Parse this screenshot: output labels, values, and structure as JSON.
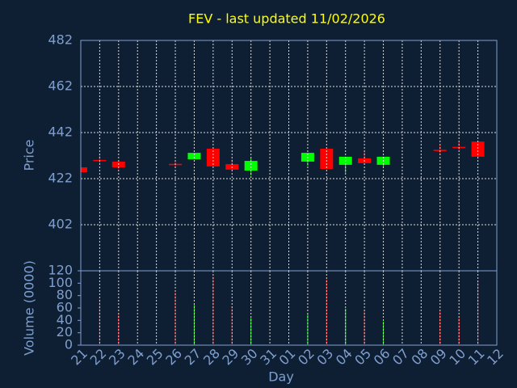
{
  "chart_data": {
    "type": "candlestick",
    "title": "FEV - last updated 11/02/2026",
    "ylabel": "Price",
    "y2label": "Volume (0000)",
    "xlabel": "Day",
    "categories": [
      "21",
      "22",
      "23",
      "24",
      "25",
      "26",
      "27",
      "28",
      "29",
      "30",
      "31",
      "01",
      "02",
      "03",
      "04",
      "05",
      "06",
      "07",
      "08",
      "09",
      "10",
      "11",
      "12"
    ],
    "open": [
      426.9,
      430.1,
      429.4,
      null,
      null,
      428.4,
      430.4,
      435.0,
      428.3,
      425.5,
      null,
      null,
      429.4,
      435.0,
      428.0,
      430.8,
      428.0,
      null,
      null,
      434.5,
      435.8,
      438.1,
      null
    ],
    "close": [
      424.8,
      429.8,
      426.9,
      null,
      null,
      428.0,
      433.2,
      427.3,
      425.9,
      429.7,
      null,
      null,
      433.2,
      426.2,
      431.5,
      428.7,
      431.5,
      null,
      null,
      434.2,
      435.6,
      431.5,
      null
    ],
    "high": [
      426.9,
      432.9,
      429.4,
      null,
      null,
      429.7,
      433.2,
      435.0,
      430.5,
      431.0,
      null,
      null,
      433.2,
      435.0,
      431.5,
      434.1,
      431.5,
      null,
      null,
      436.7,
      437.8,
      438.1,
      null
    ],
    "low": [
      424.8,
      428.7,
      426.2,
      null,
      null,
      426.6,
      430.4,
      427.3,
      425.2,
      423.4,
      null,
      null,
      427.6,
      426.2,
      424.5,
      428.0,
      426.6,
      null,
      null,
      432.2,
      434.3,
      430.5,
      null
    ],
    "volume": [
      null,
      74,
      51,
      null,
      null,
      85,
      65,
      111,
      63,
      44,
      null,
      null,
      50,
      106,
      59,
      55,
      38,
      null,
      null,
      55,
      46,
      104,
      null
    ],
    "up_color": "#00ff00",
    "down_color": "#ff0000",
    "ylim": [
      382,
      482
    ],
    "yticks": [
      402,
      422,
      442,
      462,
      482
    ],
    "y2lim": [
      0,
      120
    ],
    "y2ticks": [
      0,
      20,
      40,
      60,
      80,
      100,
      120
    ],
    "grid": true
  }
}
